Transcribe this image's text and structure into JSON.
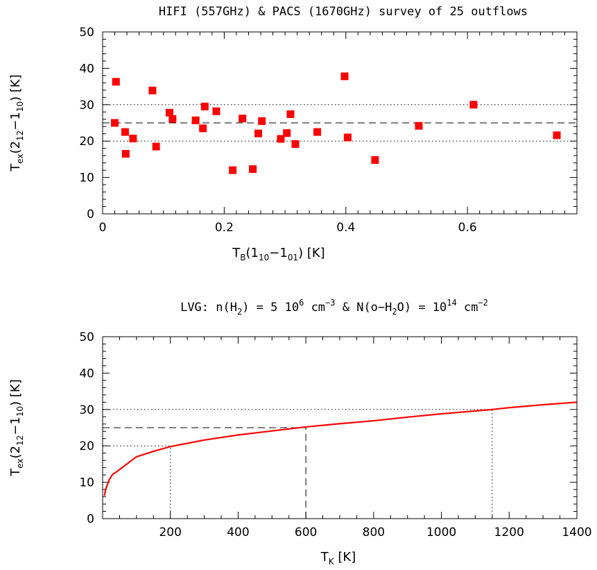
{
  "chart_data": [
    {
      "type": "scatter",
      "title": "HIFI (557GHz) & PACS (1670GHz) survey of 25 outflows",
      "xlabel": "T_B(1_10 - 1_01) [K]",
      "ylabel": "T_ex(2_12 - 1_10) [K]",
      "xlim": [
        0,
        0.78
      ],
      "ylim": [
        0,
        50
      ],
      "xticks": [
        0,
        0.2,
        0.4,
        0.6
      ],
      "xtick_labels": [
        "0",
        "0.2",
        "0.4",
        "0.6"
      ],
      "yticks": [
        0,
        10,
        20,
        30,
        40,
        50
      ],
      "ytick_labels": [
        "0",
        "10",
        "20",
        "30",
        "40",
        "50"
      ],
      "grid": false,
      "marker_color": "#ff0000",
      "reference_lines": [
        {
          "y": 30,
          "style": "dotted"
        },
        {
          "y": 25,
          "style": "dashed"
        },
        {
          "y": 20,
          "style": "dotted"
        }
      ],
      "points": [
        {
          "x": 0.02,
          "y": 25
        },
        {
          "x": 0.022,
          "y": 36.3
        },
        {
          "x": 0.037,
          "y": 22.5
        },
        {
          "x": 0.038,
          "y": 16.5
        },
        {
          "x": 0.05,
          "y": 20.7
        },
        {
          "x": 0.082,
          "y": 33.9
        },
        {
          "x": 0.088,
          "y": 18.5
        },
        {
          "x": 0.11,
          "y": 27.8
        },
        {
          "x": 0.115,
          "y": 26.1
        },
        {
          "x": 0.153,
          "y": 25.7
        },
        {
          "x": 0.165,
          "y": 23.5
        },
        {
          "x": 0.168,
          "y": 29.5
        },
        {
          "x": 0.187,
          "y": 28.2
        },
        {
          "x": 0.214,
          "y": 12.0
        },
        {
          "x": 0.23,
          "y": 26.2
        },
        {
          "x": 0.247,
          "y": 12.3
        },
        {
          "x": 0.256,
          "y": 22.1
        },
        {
          "x": 0.262,
          "y": 25.5
        },
        {
          "x": 0.293,
          "y": 20.6
        },
        {
          "x": 0.303,
          "y": 22.2
        },
        {
          "x": 0.309,
          "y": 27.4
        },
        {
          "x": 0.317,
          "y": 19.2
        },
        {
          "x": 0.353,
          "y": 22.5
        },
        {
          "x": 0.398,
          "y": 37.8
        },
        {
          "x": 0.403,
          "y": 21.0
        },
        {
          "x": 0.448,
          "y": 14.8
        },
        {
          "x": 0.52,
          "y": 24.2
        },
        {
          "x": 0.61,
          "y": 30.0
        },
        {
          "x": 0.747,
          "y": 21.6
        }
      ]
    },
    {
      "type": "line",
      "title": "LVG: n(H_2) = 5 10^6 cm^-3 & N(o-H_2O) = 10^14 cm^-2",
      "xlabel": "T_K [K]",
      "ylabel": "T_ex(2_12 - 1_10) [K]",
      "xlim": [
        0,
        1400
      ],
      "ylim": [
        0,
        50
      ],
      "xticks": [
        200,
        400,
        600,
        800,
        1000,
        1200,
        1400
      ],
      "xtick_labels": [
        "200",
        "400",
        "600",
        "800",
        "1000",
        "1200",
        "1400"
      ],
      "yticks": [
        0,
        10,
        20,
        30,
        40,
        50
      ],
      "ytick_labels": [
        "0",
        "10",
        "20",
        "30",
        "40",
        "50"
      ],
      "grid": false,
      "line_color": "#ff0000",
      "series": [
        {
          "x": [
            5,
            10,
            20,
            30,
            40,
            60,
            80,
            100,
            150,
            200,
            300,
            400,
            500,
            600,
            700,
            800,
            900,
            1000,
            1100,
            1150,
            1200,
            1300,
            1400
          ],
          "y": [
            6.3,
            8.3,
            10.8,
            12.2,
            12.8,
            14.2,
            15.6,
            17.0,
            18.5,
            19.8,
            21.6,
            23.0,
            24.1,
            25.2,
            26.1,
            26.9,
            27.9,
            28.8,
            29.6,
            30.0,
            30.5,
            31.3,
            32.0
          ]
        }
      ],
      "reference_lines": [
        {
          "y": 30,
          "x_to": 1150,
          "style": "dotted"
        },
        {
          "y": 25,
          "x_to": 600,
          "style": "dashed"
        },
        {
          "y": 20,
          "x_to": 200,
          "style": "dotted"
        },
        {
          "x": 200,
          "y_to": 20,
          "style": "dotted"
        },
        {
          "x": 600,
          "y_to": 25,
          "style": "dashed"
        },
        {
          "x": 1150,
          "y_to": 30,
          "style": "dotted"
        }
      ]
    }
  ]
}
